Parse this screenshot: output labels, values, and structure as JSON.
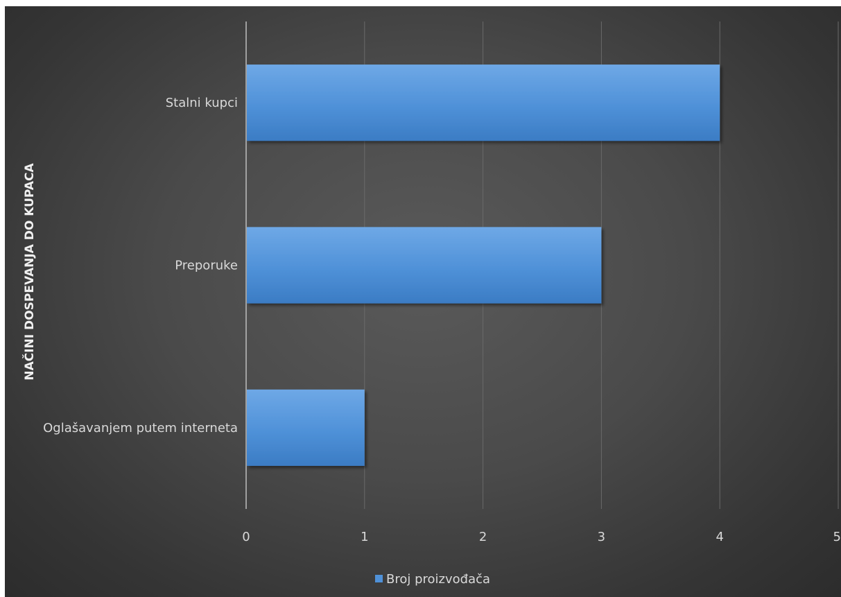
{
  "chart_data": {
    "type": "bar",
    "orientation": "horizontal",
    "categories": [
      "Stalni kupci",
      "Preporuke",
      "Oglašavanjem putem interneta"
    ],
    "series": [
      {
        "name": "Broj proizvođača",
        "values": [
          4,
          3,
          1
        ],
        "color": "#4f91d8"
      }
    ],
    "xlabel": "",
    "ylabel": "NAČINI DOSPEVANJA DO KUPACA",
    "xlim": [
      0,
      5
    ],
    "xticks": [
      "0",
      "1",
      "2",
      "3",
      "4",
      "5"
    ],
    "grid": true,
    "legend_position": "bottom",
    "background": "#4a4a4a"
  }
}
